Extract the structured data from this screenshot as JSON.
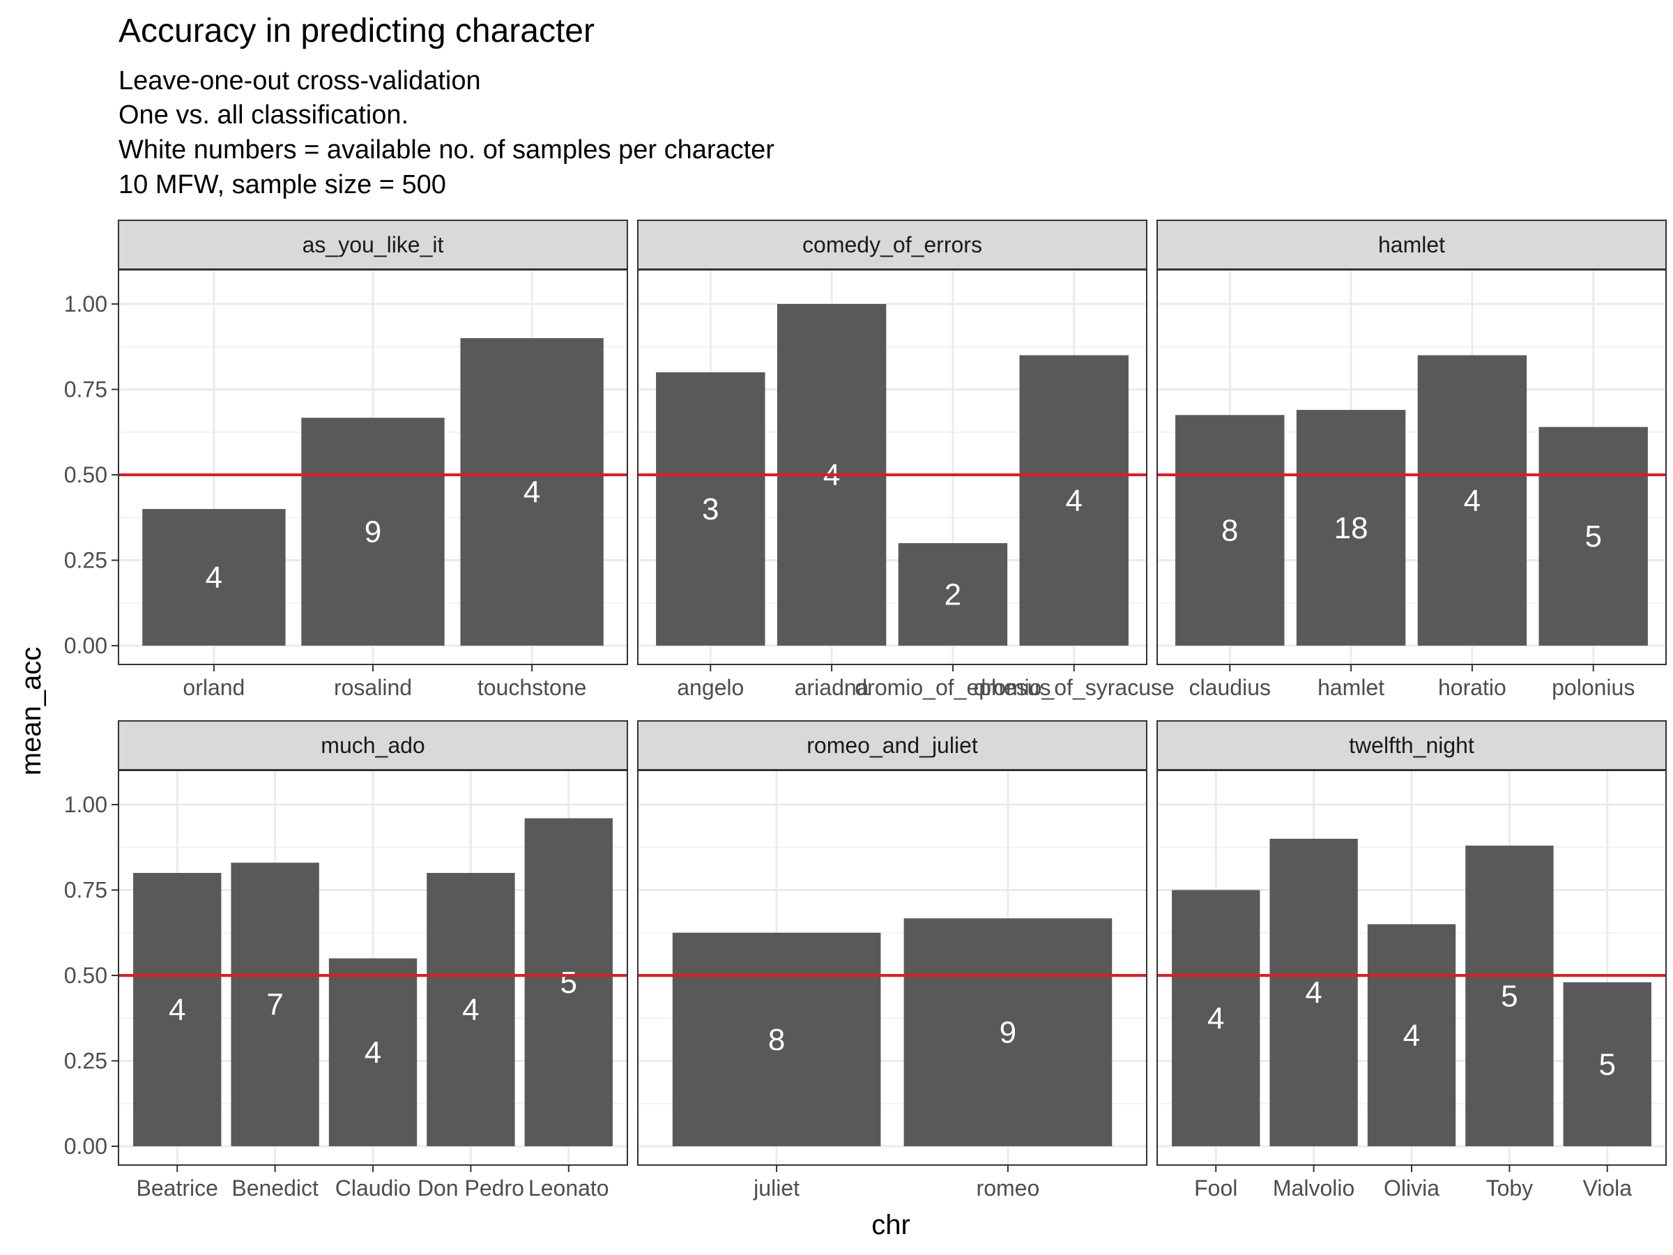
{
  "chart_data": {
    "type": "bar",
    "title": "Accuracy in predicting character",
    "subtitle_lines": [
      "Leave-one-out cross-validation",
      "One vs. all classification.",
      "White numbers = available no. of samples per character",
      "10 MFW, sample size = 500"
    ],
    "xlabel": "chr",
    "ylabel": "mean_acc",
    "ylim": [
      0,
      1.1
    ],
    "yticks": [
      "0.00",
      "0.25",
      "0.50",
      "0.75",
      "1.00"
    ],
    "reference_line": {
      "y": 0.5,
      "color": "#e41a1c"
    },
    "bar_color": "#595959",
    "grid": true,
    "facets": [
      {
        "name": "as_you_like_it",
        "categories": [
          "orland",
          "rosalind",
          "touchstone"
        ],
        "values": [
          0.4,
          0.667,
          0.9
        ],
        "labels": [
          "4",
          "9",
          "4"
        ]
      },
      {
        "name": "comedy_of_errors",
        "categories": [
          "angelo",
          "ariadna",
          "dromio_of_ephesus",
          "dromio_of_syracuse"
        ],
        "values": [
          0.8,
          1.0,
          0.3,
          0.85
        ],
        "labels": [
          "3",
          "4",
          "2",
          "4"
        ]
      },
      {
        "name": "hamlet",
        "categories": [
          "claudius",
          "hamlet",
          "horatio",
          "polonius"
        ],
        "values": [
          0.675,
          0.69,
          0.85,
          0.64
        ],
        "labels": [
          "8",
          "18",
          "4",
          "5"
        ]
      },
      {
        "name": "much_ado",
        "categories": [
          "Beatrice",
          "Benedict",
          "Claudio",
          "Don Pedro",
          "Leonato"
        ],
        "values": [
          0.8,
          0.83,
          0.55,
          0.8,
          0.96
        ],
        "labels": [
          "4",
          "7",
          "4",
          "4",
          "5"
        ]
      },
      {
        "name": "romeo_and_juliet",
        "categories": [
          "juliet",
          "romeo"
        ],
        "values": [
          0.625,
          0.667
        ],
        "labels": [
          "8",
          "9"
        ]
      },
      {
        "name": "twelfth_night",
        "categories": [
          "Fool",
          "Malvolio",
          "Olivia",
          "Toby",
          "Viola"
        ],
        "values": [
          0.75,
          0.9,
          0.65,
          0.88,
          0.48
        ],
        "labels": [
          "4",
          "4",
          "4",
          "5",
          "5"
        ]
      }
    ]
  }
}
